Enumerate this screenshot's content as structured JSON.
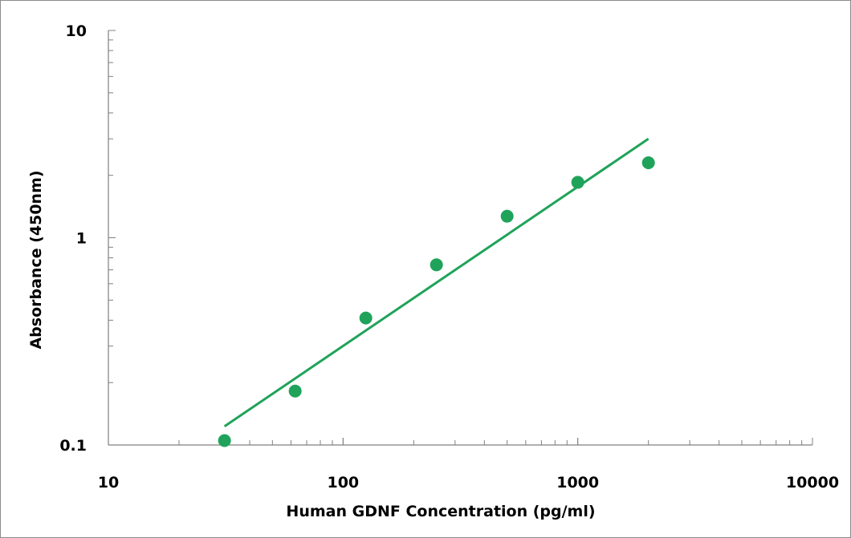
{
  "chart_data": {
    "type": "scatter",
    "title": "",
    "xlabel": "Human GDNF Concentration (pg/ml)",
    "ylabel": "Absorbance (450nm)",
    "x_scale": "log",
    "y_scale": "log",
    "xlim": [
      10,
      10000
    ],
    "ylim": [
      0.1,
      10
    ],
    "x_ticks": [
      "10",
      "100",
      "1000",
      "10000"
    ],
    "y_ticks": [
      "0.1",
      "1",
      "10"
    ],
    "grid": false,
    "legend": "none",
    "series": [
      {
        "type": "scatter",
        "x": [
          31.25,
          62.5,
          125,
          250,
          500,
          1000,
          2000
        ],
        "y": [
          0.105,
          0.182,
          0.41,
          0.74,
          1.27,
          1.85,
          2.3
        ]
      },
      {
        "type": "line",
        "x": [
          31.25,
          2000
        ],
        "y": [
          0.123,
          3.0
        ]
      }
    ],
    "colors": {
      "series": "#1fa35a",
      "axis": "#808080"
    }
  }
}
